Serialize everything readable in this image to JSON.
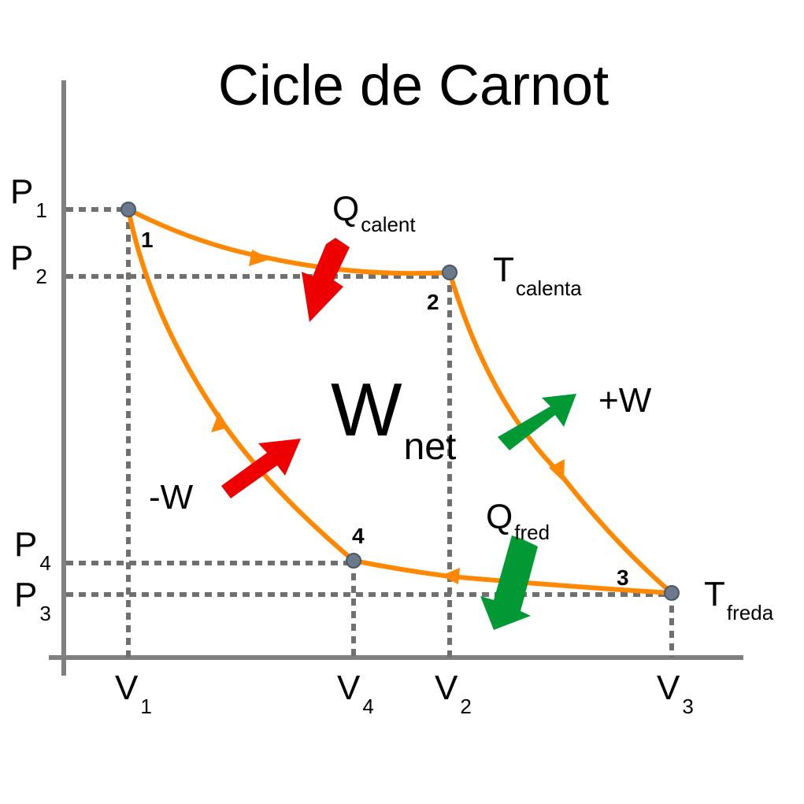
{
  "title": "Cicle de Carnot",
  "colors": {
    "axis": "#808080",
    "guide": "#707070",
    "curve": "#ff8800",
    "hot_arrow": "#ee0000",
    "cold_arrow": "#009933",
    "point": "#6a7a8c"
  },
  "pressures": [
    {
      "main": "P",
      "sub": "1"
    },
    {
      "main": "P",
      "sub": "2"
    },
    {
      "main": "P",
      "sub": "4"
    },
    {
      "main": "P",
      "sub": "3"
    }
  ],
  "volumes": [
    {
      "main": "V",
      "sub": "1"
    },
    {
      "main": "V",
      "sub": "4"
    },
    {
      "main": "V",
      "sub": "2"
    },
    {
      "main": "V",
      "sub": "3"
    }
  ],
  "points": [
    "1",
    "2",
    "3",
    "4"
  ],
  "labels": {
    "q_hot": {
      "main": "Q",
      "sub": "calent"
    },
    "q_cold": {
      "main": "Q",
      "sub": "fred"
    },
    "t_hot": {
      "main": "T",
      "sub": "calenta"
    },
    "t_cold": {
      "main": "T",
      "sub": "freda"
    },
    "w_plus": "+W",
    "w_minus": "-W",
    "w_net": {
      "main": "W",
      "sub": "net"
    }
  }
}
